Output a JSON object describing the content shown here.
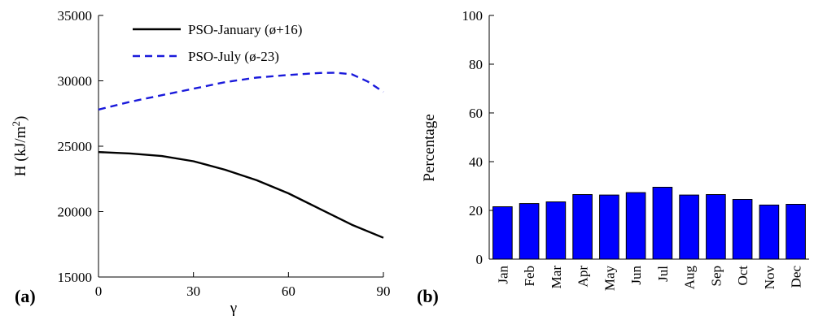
{
  "chart_data": [
    {
      "panel_label": "(a)",
      "type": "line",
      "xlabel": "γ",
      "ylabel_main": "H (kJ/m",
      "ylabel_sup": "2",
      "ylabel_close": ")",
      "xlim": [
        0,
        90
      ],
      "ylim": [
        15000,
        35000
      ],
      "xticks": [
        0,
        30,
        60,
        90
      ],
      "yticks": [
        15000,
        20000,
        25000,
        30000,
        35000
      ],
      "grid": false,
      "legend_position": "top-right",
      "series": [
        {
          "name": "PSO-January (ø+16)",
          "style": "solid",
          "color": "#000000",
          "x": [
            0,
            10,
            20,
            30,
            40,
            50,
            60,
            70,
            80,
            90
          ],
          "y": [
            24550,
            24450,
            24250,
            23850,
            23200,
            22400,
            21400,
            20200,
            19000,
            18000
          ]
        },
        {
          "name": "PSO-July (ø-23)",
          "style": "dashed",
          "color": "#1a1adb",
          "x": [
            0,
            10,
            20,
            30,
            40,
            50,
            60,
            70,
            75,
            80,
            85,
            90
          ],
          "y": [
            27800,
            28400,
            28900,
            29400,
            29900,
            30250,
            30450,
            30600,
            30620,
            30500,
            29950,
            29150
          ]
        }
      ]
    },
    {
      "panel_label": "(b)",
      "type": "bar",
      "ylabel": "Percentage",
      "ylim": [
        0,
        100
      ],
      "yticks": [
        0,
        20,
        40,
        60,
        80,
        100
      ],
      "grid": false,
      "bar_color": "#0000ff",
      "categories": [
        "Jan",
        "Feb",
        "Mar",
        "Apr",
        "May",
        "Jun",
        "Jul",
        "Aug",
        "Sep",
        "Oct",
        "Nov",
        "Dec"
      ],
      "values": [
        21.5,
        22.8,
        23.5,
        26.5,
        26.3,
        27.3,
        29.5,
        26.3,
        26.5,
        24.5,
        22.2,
        22.5
      ]
    }
  ]
}
